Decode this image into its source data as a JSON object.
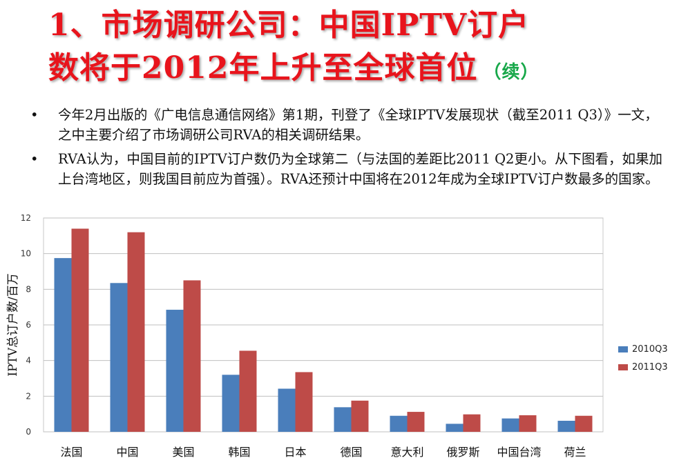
{
  "slide": {
    "title_line1": "1、市场调研公司：中国IPTV订户",
    "title_line2": "数将于2012年上升至全球首位",
    "title_suffix": "（续）",
    "bullet_symbol": "•",
    "bullets": [
      "今年2月出版的《广电信息通信网络》第1期，刊登了《全球IPTV发展现状（截至2011 Q3）》一文，之中主要介绍了市场调研公司RVA的相关调研结果。",
      "RVA认为，中国目前的IPTV订户数仍为全球第二（与法国的差距比2011 Q2更小。从下图看，如果加上台湾地区，则我国目前应为首强）。RVA还预计中国将在2012年成为全球IPTV订户数最多的国家。"
    ]
  },
  "colors": {
    "series_2010Q3": "#4a7ebb",
    "series_2011Q3": "#be4b48",
    "title": "#e8141c",
    "suffix": "#18a84a"
  },
  "chart_data": {
    "type": "bar",
    "title": "",
    "xlabel": "",
    "ylabel": "IPTV总订户数/百万",
    "ylim": [
      0,
      12
    ],
    "yticks": [
      0,
      2,
      4,
      6,
      8,
      10,
      12
    ],
    "grid": true,
    "legend_position": "right",
    "categories": [
      "法国",
      "中国",
      "美国",
      "韩国",
      "日本",
      "德国",
      "意大利",
      "俄罗斯",
      "中国台湾",
      "荷兰"
    ],
    "series": [
      {
        "name": "2010Q3",
        "values": [
          9.75,
          8.35,
          6.85,
          3.2,
          2.42,
          1.38,
          0.9,
          0.45,
          0.75,
          0.62
        ]
      },
      {
        "name": "2011Q3",
        "values": [
          11.4,
          11.2,
          8.5,
          4.55,
          3.35,
          1.75,
          1.12,
          0.98,
          0.93,
          0.9
        ]
      }
    ]
  }
}
